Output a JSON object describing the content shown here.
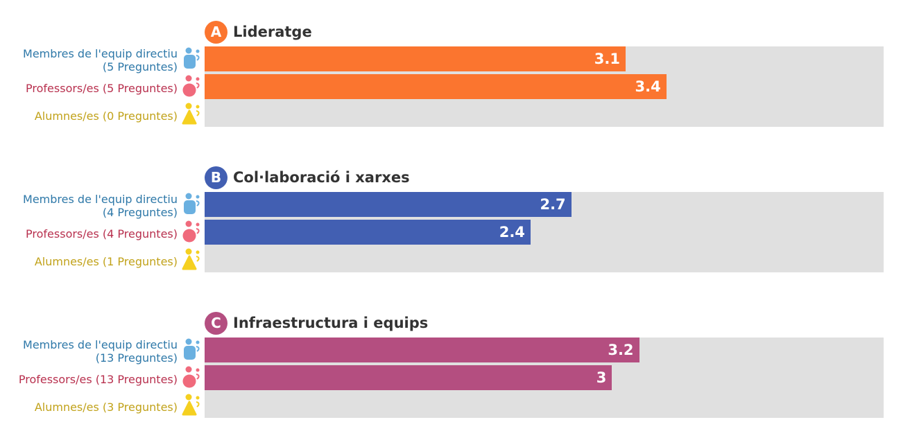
{
  "colors": {
    "track": "#e0e0e0",
    "directiu": "#2e78a8",
    "professors": "#b8304e",
    "alumnes": "#c1a21a",
    "icon_directiu": "#6ab0e0",
    "icon_professors": "#f06a7c",
    "icon_alumnes": "#f5d020"
  },
  "chart_data": {
    "type": "bar",
    "orientation": "horizontal",
    "xlim": [
      0,
      5
    ],
    "groups": [
      {
        "letter": "A",
        "title": "Lideratge",
        "color": "#fb752f",
        "rows": [
          {
            "role": "directiu",
            "label": "Membres de l'equip directiu (5 Preguntes)",
            "value": 3.1,
            "value_label": "3.1"
          },
          {
            "role": "professors",
            "label": "Professors/es (5 Preguntes)",
            "value": 3.4,
            "value_label": "3.4"
          },
          {
            "role": "alumnes",
            "label": "Alumnes/es (0 Preguntes)",
            "value": null,
            "value_label": ""
          }
        ]
      },
      {
        "letter": "B",
        "title": "Col·laboració i xarxes",
        "color": "#425fb2",
        "rows": [
          {
            "role": "directiu",
            "label": "Membres de l'equip directiu (4 Preguntes)",
            "value": 2.7,
            "value_label": "2.7"
          },
          {
            "role": "professors",
            "label": "Professors/es (4 Preguntes)",
            "value": 2.4,
            "value_label": "2.4"
          },
          {
            "role": "alumnes",
            "label": "Alumnes/es (1 Preguntes)",
            "value": null,
            "value_label": ""
          }
        ]
      },
      {
        "letter": "C",
        "title": "Infraestructura i equips",
        "color": "#b44e80",
        "rows": [
          {
            "role": "directiu",
            "label": "Membres de l'equip directiu (13 Preguntes)",
            "value": 3.2,
            "value_label": "3.2"
          },
          {
            "role": "professors",
            "label": "Professors/es (13 Preguntes)",
            "value": 3.0,
            "value_label": "3"
          },
          {
            "role": "alumnes",
            "label": "Alumnes/es (3 Preguntes)",
            "value": null,
            "value_label": ""
          }
        ]
      }
    ]
  }
}
